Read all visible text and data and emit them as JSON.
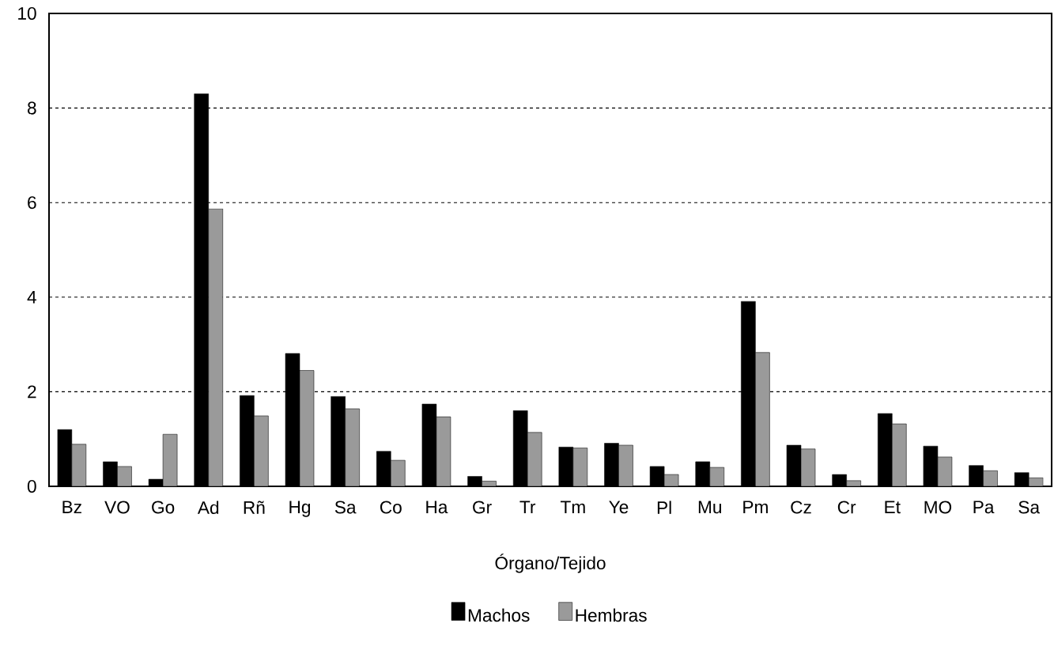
{
  "chart_data": {
    "type": "bar",
    "xlabel": "Órgano/Tejido",
    "categories": [
      "Bz",
      "VO",
      "Go",
      "Ad",
      "Rñ",
      "Hg",
      "Sa",
      "Co",
      "Ha",
      "Gr",
      "Tr",
      "Tm",
      "Ye",
      "Pl",
      "Mu",
      "Pm",
      "Cz",
      "Cr",
      "Et",
      "MO",
      "Pa",
      "Sa"
    ],
    "series": [
      {
        "name": "Machos",
        "color": "#000000",
        "values": [
          1.2,
          0.52,
          0.15,
          8.3,
          1.92,
          2.81,
          1.9,
          0.74,
          1.74,
          0.21,
          1.6,
          0.83,
          0.91,
          0.42,
          0.52,
          3.91,
          0.87,
          0.25,
          1.54,
          0.85,
          0.44,
          0.29
        ]
      },
      {
        "name": "Hembras",
        "color": "#9a9a9a",
        "values": [
          0.89,
          0.42,
          1.1,
          5.87,
          1.49,
          2.45,
          1.64,
          0.55,
          1.47,
          0.11,
          1.14,
          0.81,
          0.87,
          0.25,
          0.4,
          2.83,
          0.79,
          0.12,
          1.32,
          0.62,
          0.33,
          0.18
        ]
      }
    ],
    "ylim": [
      0,
      10
    ],
    "yticks": [
      0,
      2,
      4,
      6,
      8,
      10
    ],
    "grid": "y",
    "legend": "bottom"
  }
}
